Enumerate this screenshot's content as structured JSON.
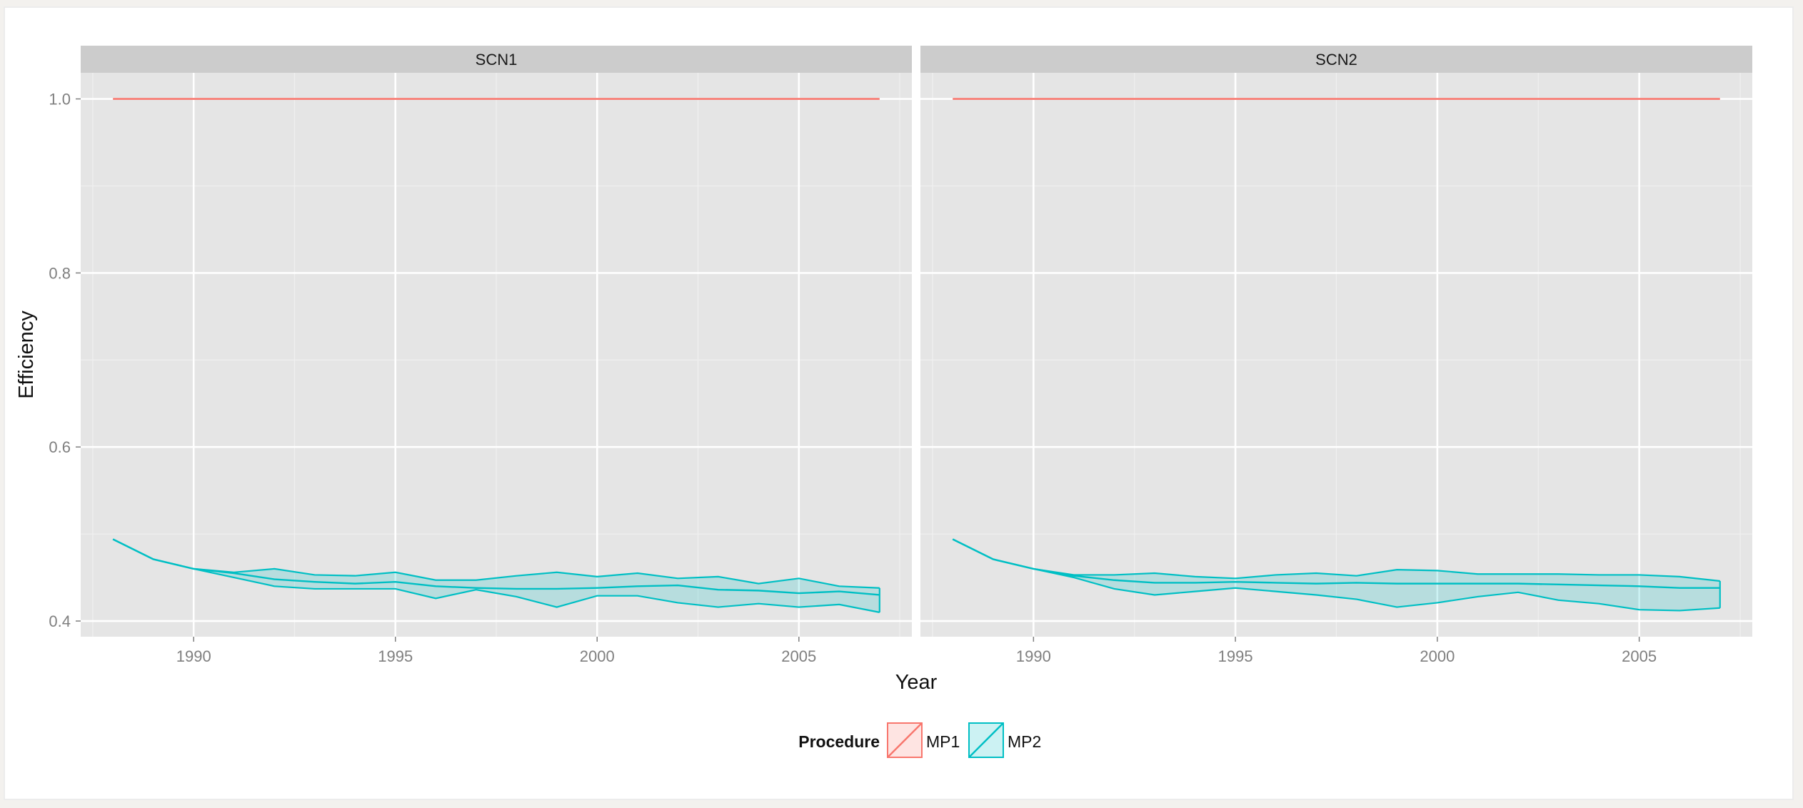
{
  "colors": {
    "mp1": "#f8766d",
    "mp2": "#00bfc4",
    "panel_bg": "#e5e5e5",
    "strip_bg": "#cccccc",
    "grid": "#ffffff",
    "tick_text": "#7f7f7f"
  },
  "chart_data": {
    "type": "line",
    "xlabel": "Year",
    "ylabel": "Efficiency",
    "xlim": [
      1987.2,
      2007.8
    ],
    "ylim": [
      0.382,
      1.03
    ],
    "x_ticks": [
      1990,
      1995,
      2000,
      2005
    ],
    "y_ticks": [
      0.4,
      0.6,
      0.8,
      1.0
    ],
    "y_tick_labels": [
      "0.4",
      "0.6",
      "0.8",
      "1.0"
    ],
    "grid": true,
    "legend": {
      "title": "Procedure",
      "position": "bottom",
      "entries": [
        "MP1",
        "MP2"
      ]
    },
    "panels": [
      {
        "strip": "SCN1",
        "series": [
          {
            "name": "MP1",
            "x": [
              1988,
              2007
            ],
            "y": [
              1.0,
              1.0
            ]
          },
          {
            "name": "MP2",
            "x": [
              1988,
              1989,
              1990,
              1991,
              1992,
              1993,
              1994,
              1995,
              1996,
              1997,
              1998,
              1999,
              2000,
              2001,
              2002,
              2003,
              2004,
              2005,
              2006,
              2007
            ],
            "median": [
              0.494,
              0.471,
              0.46,
              0.455,
              0.448,
              0.445,
              0.443,
              0.445,
              0.44,
              0.438,
              0.437,
              0.437,
              0.438,
              0.44,
              0.441,
              0.436,
              0.435,
              0.432,
              0.434,
              0.43
            ],
            "upper": [
              0.494,
              0.471,
              0.46,
              0.456,
              0.46,
              0.453,
              0.452,
              0.456,
              0.447,
              0.447,
              0.452,
              0.456,
              0.451,
              0.455,
              0.449,
              0.451,
              0.443,
              0.449,
              0.44,
              0.438
            ],
            "lower": [
              0.494,
              0.471,
              0.46,
              0.45,
              0.44,
              0.437,
              0.437,
              0.437,
              0.426,
              0.436,
              0.428,
              0.416,
              0.429,
              0.429,
              0.421,
              0.416,
              0.42,
              0.416,
              0.419,
              0.41
            ]
          }
        ]
      },
      {
        "strip": "SCN2",
        "series": [
          {
            "name": "MP1",
            "x": [
              1988,
              2007
            ],
            "y": [
              1.0,
              1.0
            ]
          },
          {
            "name": "MP2",
            "x": [
              1988,
              1989,
              1990,
              1991,
              1992,
              1993,
              1994,
              1995,
              1996,
              1997,
              1998,
              1999,
              2000,
              2001,
              2002,
              2003,
              2004,
              2005,
              2006,
              2007
            ],
            "median": [
              0.494,
              0.471,
              0.46,
              0.452,
              0.447,
              0.444,
              0.444,
              0.445,
              0.444,
              0.443,
              0.444,
              0.443,
              0.443,
              0.443,
              0.443,
              0.442,
              0.441,
              0.44,
              0.438,
              0.438
            ],
            "upper": [
              0.494,
              0.471,
              0.46,
              0.453,
              0.453,
              0.455,
              0.451,
              0.449,
              0.453,
              0.455,
              0.452,
              0.459,
              0.458,
              0.454,
              0.454,
              0.454,
              0.453,
              0.453,
              0.451,
              0.446
            ],
            "lower": [
              0.494,
              0.471,
              0.46,
              0.45,
              0.437,
              0.43,
              0.434,
              0.438,
              0.434,
              0.43,
              0.425,
              0.416,
              0.421,
              0.428,
              0.433,
              0.424,
              0.42,
              0.413,
              0.412,
              0.415
            ]
          }
        ]
      }
    ]
  }
}
